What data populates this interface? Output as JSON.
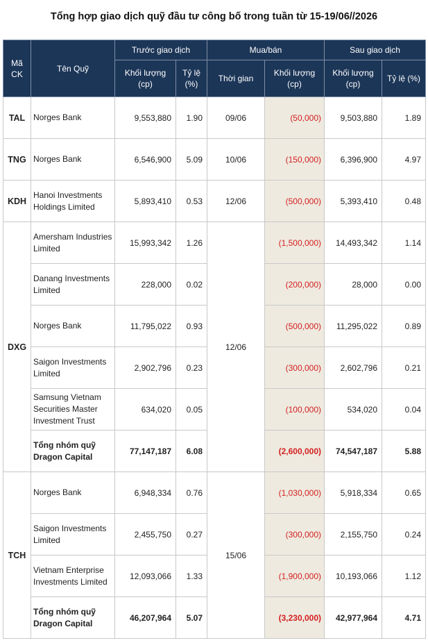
{
  "title": "Tổng hợp giao dịch quỹ đầu tư công bố trong tuần từ 15-19/06//2026",
  "headers": {
    "code": "Mã CK",
    "fund": "Tên Quỹ",
    "before": "Trước giao dịch",
    "trade": "Mua/bán",
    "after": "Sau giao dịch",
    "volume": "Khối lượng (cp)",
    "ratio": "Tỷ lệ (%)",
    "time": "Thời gian",
    "trade_volume": "Khối lượng (cp)",
    "after_volume": "Khối lượng (cp)",
    "after_ratio": "Tỷ lệ (%)"
  },
  "groups": [
    {
      "code": "TAL",
      "date": "09/06",
      "rows": [
        {
          "fund": "Norges Bank",
          "before_vol": "9,553,880",
          "before_pct": "1.90",
          "trade": "(50,000)",
          "after_vol": "9,503,880",
          "after_pct": "1.89"
        }
      ]
    },
    {
      "code": "TNG",
      "date": "10/06",
      "rows": [
        {
          "fund": "Norges Bank",
          "before_vol": "6,546,900",
          "before_pct": "5.09",
          "trade": "(150,000)",
          "after_vol": "6,396,900",
          "after_pct": "4.97"
        }
      ]
    },
    {
      "code": "KDH",
      "date": "12/06",
      "rows": [
        {
          "fund": "Hanoi Investments Holdings Limited",
          "before_vol": "5,893,410",
          "before_pct": "0.53",
          "trade": "(500,000)",
          "after_vol": "5,393,410",
          "after_pct": "0.48"
        }
      ]
    },
    {
      "code": "DXG",
      "date": "12/06",
      "rows": [
        {
          "fund": "Amersham Industries Limited",
          "before_vol": "15,993,342",
          "before_pct": "1.26",
          "trade": "(1,500,000)",
          "after_vol": "14,493,342",
          "after_pct": "1.14"
        },
        {
          "fund": "Danang Investments Limited",
          "before_vol": "228,000",
          "before_pct": "0.02",
          "trade": "(200,000)",
          "after_vol": "28,000",
          "after_pct": "0.00"
        },
        {
          "fund": "Norges Bank",
          "before_vol": "11,795,022",
          "before_pct": "0.93",
          "trade": "(500,000)",
          "after_vol": "11,295,022",
          "after_pct": "0.89"
        },
        {
          "fund": "Saigon Investments Limited",
          "before_vol": "2,902,796",
          "before_pct": "0.23",
          "trade": "(300,000)",
          "after_vol": "2,602,796",
          "after_pct": "0.21"
        },
        {
          "fund": "Samsung Vietnam Securities Master Investment Trust",
          "before_vol": "634,020",
          "before_pct": "0.05",
          "trade": "(100,000)",
          "after_vol": "534,020",
          "after_pct": "0.04"
        },
        {
          "fund": "Tổng nhóm quỹ Dragon Capital",
          "before_vol": "77,147,187",
          "before_pct": "6.08",
          "trade": "(2,600,000)",
          "after_vol": "74,547,187",
          "after_pct": "5.88",
          "total": true
        }
      ]
    },
    {
      "code": "TCH",
      "date": "15/06",
      "rows": [
        {
          "fund": "Norges Bank",
          "before_vol": "6,948,334",
          "before_pct": "0.76",
          "trade": "(1,030,000)",
          "after_vol": "5,918,334",
          "after_pct": "0.65"
        },
        {
          "fund": "Saigon Investments Limited",
          "before_vol": "2,455,750",
          "before_pct": "0.27",
          "trade": "(300,000)",
          "after_vol": "2,155,750",
          "after_pct": "0.24"
        },
        {
          "fund": "Vietnam Enterprise Investments Limited",
          "before_vol": "12,093,066",
          "before_pct": "1.33",
          "trade": "(1,900,000)",
          "after_vol": "10,193,066",
          "after_pct": "1.12"
        },
        {
          "fund": "Tổng nhóm quỹ Dragon Capital",
          "before_vol": "46,207,964",
          "before_pct": "5.07",
          "trade": "(3,230,000)",
          "after_vol": "42,977,964",
          "after_pct": "4.71",
          "total": true
        }
      ]
    }
  ]
}
